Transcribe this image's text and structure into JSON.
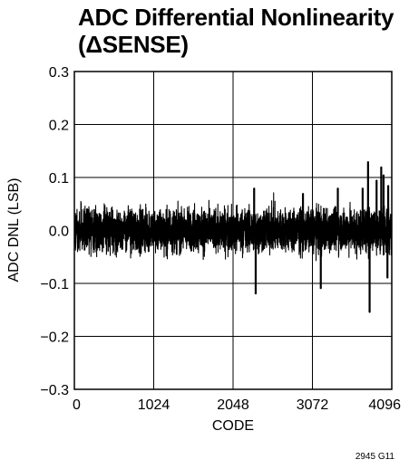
{
  "chart_data": {
    "type": "line",
    "title_lines": [
      "ADC Differential Nonlinearity",
      "(ΔSENSE)"
    ],
    "xlabel": "CODE",
    "ylabel": "ADC DNL (LSB)",
    "xlim": [
      0,
      4096
    ],
    "ylim": [
      -0.3,
      0.3
    ],
    "x_ticks": [
      0,
      1024,
      2048,
      3072,
      4096
    ],
    "x_tick_labels": [
      "0",
      "1024",
      "2048",
      "3072",
      "4096"
    ],
    "y_ticks": [
      -0.3,
      -0.2,
      -0.1,
      0.0,
      0.1,
      0.2,
      0.3
    ],
    "y_tick_labels": [
      "−0.3",
      "−0.2",
      "−0.1",
      "0.0",
      "0.1",
      "0.2",
      "0.3"
    ],
    "grid": true,
    "series": [
      {
        "color": "#000000",
        "noise_envelope": {
          "typical_max": 0.06,
          "typical_min": -0.06,
          "n_points": 4096
        },
        "peaks": [
          {
            "x": 2320,
            "y": 0.08
          },
          {
            "x": 2340,
            "y": -0.12
          },
          {
            "x": 2950,
            "y": 0.07
          },
          {
            "x": 3180,
            "y": -0.11
          },
          {
            "x": 3400,
            "y": 0.08
          },
          {
            "x": 3720,
            "y": 0.08
          },
          {
            "x": 3790,
            "y": 0.13
          },
          {
            "x": 3810,
            "y": -0.155
          },
          {
            "x": 3900,
            "y": 0.095
          },
          {
            "x": 3960,
            "y": 0.12
          },
          {
            "x": 3990,
            "y": 0.105
          },
          {
            "x": 4050,
            "y": 0.085
          },
          {
            "x": 4040,
            "y": -0.09
          }
        ]
      }
    ]
  },
  "footnote": "2945 G11"
}
